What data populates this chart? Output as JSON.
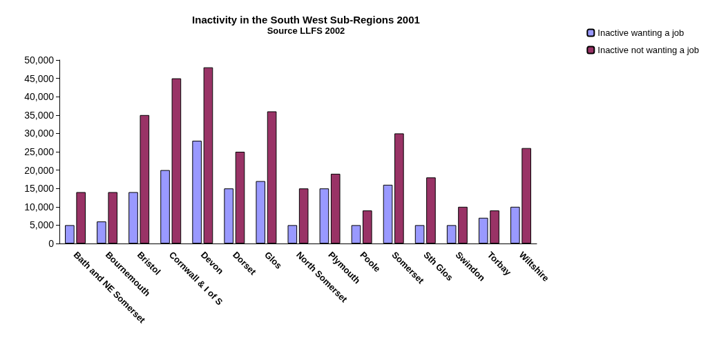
{
  "chart_data": {
    "type": "bar",
    "title": "Inactivity in the South West Sub-Regions 2001",
    "subtitle": "Source LLFS 2002",
    "categories": [
      "Bath and NE Somerset",
      "Bournemouth",
      "Bristol",
      "Cornwall & I of S",
      "Devon",
      "Dorset",
      "Glos",
      "North Somerset",
      "Plymouth",
      "Poole",
      "Somerset",
      "Sth Glos",
      "Swindon",
      "Torbay",
      "Wiltshire"
    ],
    "series": [
      {
        "name": "Inactive wanting a job",
        "color": "#9999ff",
        "values": [
          5000,
          6000,
          14000,
          20000,
          28000,
          15000,
          17000,
          5000,
          15000,
          5000,
          16000,
          5000,
          5000,
          7000,
          10000
        ]
      },
      {
        "name": "Inactive not wanting a job",
        "color": "#993366",
        "values": [
          14000,
          14000,
          35000,
          45000,
          48000,
          25000,
          36000,
          15000,
          19000,
          9000,
          30000,
          18000,
          10000,
          9000,
          26000
        ]
      }
    ],
    "ylim": [
      0,
      50000
    ],
    "yticks": [
      0,
      {
        "value": 5000,
        "label": "5,000"
      },
      {
        "value": 10000,
        "label": "10,000"
      },
      {
        "value": 15000,
        "label": "15,000"
      },
      {
        "value": 20000,
        "label": "20,000"
      },
      {
        "value": 25000,
        "label": "25,000"
      },
      {
        "value": 30000,
        "label": "30,000"
      },
      {
        "value": 35000,
        "label": "35,000"
      },
      {
        "value": 40000,
        "label": "40,000"
      },
      {
        "value": 45000,
        "label": "45,000"
      },
      {
        "value": 50000,
        "label": "50,000"
      }
    ],
    "grid": false,
    "legend": "top right"
  }
}
